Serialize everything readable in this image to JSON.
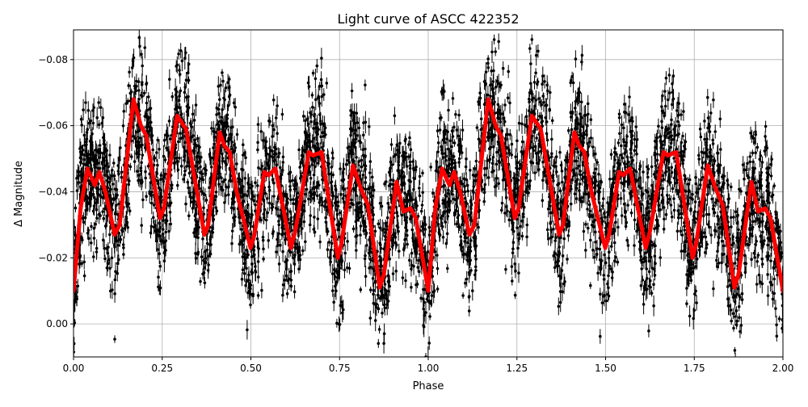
{
  "chart_data": {
    "type": "scatter",
    "title": "Light curve of ASCC 422352",
    "xlabel": "Phase",
    "ylabel": "Δ Magnitude",
    "xlim": [
      0,
      2
    ],
    "ylim": [
      0.01,
      -0.089
    ],
    "y_inverted": true,
    "grid": true,
    "x_ticks": [
      "0.00",
      "0.25",
      "0.50",
      "0.75",
      "1.00",
      "1.25",
      "1.50",
      "1.75",
      "2.00"
    ],
    "x_tick_values": [
      0,
      0.25,
      0.5,
      0.75,
      1.0,
      1.25,
      1.5,
      1.75,
      2.0
    ],
    "y_ticks": [
      "−0.08",
      "−0.06",
      "−0.04",
      "−0.02",
      "0.00"
    ],
    "y_tick_values": [
      -0.08,
      -0.06,
      -0.04,
      -0.02,
      0.0
    ],
    "colors": {
      "points": "#000000",
      "model": "#ff0000",
      "grid": "#b0b0b0"
    },
    "model_curve": {
      "period_repeats": 2,
      "phase": [
        0.0,
        0.02,
        0.039,
        0.06,
        0.073,
        0.09,
        0.116,
        0.13,
        0.169,
        0.19,
        0.205,
        0.244,
        0.255,
        0.292,
        0.317,
        0.369,
        0.38,
        0.412,
        0.425,
        0.44,
        0.46,
        0.499,
        0.51,
        0.538,
        0.55,
        0.569,
        0.613,
        0.625,
        0.663,
        0.675,
        0.699,
        0.745,
        0.755,
        0.788,
        0.81,
        0.83,
        0.863,
        0.875,
        0.911,
        0.93,
        0.95,
        0.965,
        1.0
      ],
      "magnitude": [
        -0.01,
        -0.035,
        -0.047,
        -0.042,
        -0.046,
        -0.04,
        -0.027,
        -0.03,
        -0.068,
        -0.06,
        -0.057,
        -0.032,
        -0.035,
        -0.063,
        -0.059,
        -0.027,
        -0.03,
        -0.058,
        -0.054,
        -0.052,
        -0.04,
        -0.023,
        -0.027,
        -0.046,
        -0.045,
        -0.047,
        -0.023,
        -0.028,
        -0.052,
        -0.051,
        -0.052,
        -0.02,
        -0.024,
        -0.048,
        -0.041,
        -0.036,
        -0.011,
        -0.015,
        -0.043,
        -0.034,
        -0.035,
        -0.032,
        -0.01
      ]
    }
  }
}
